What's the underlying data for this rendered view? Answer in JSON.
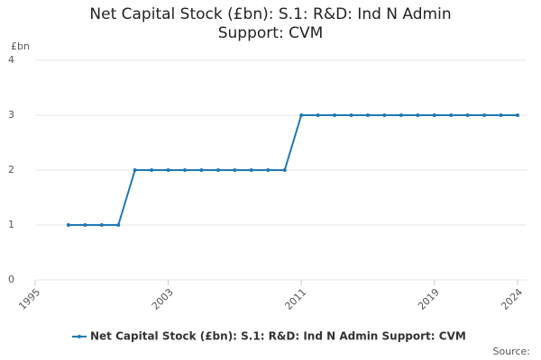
{
  "chart_data": {
    "type": "line",
    "title": "Net Capital Stock (£bn): S.1: R&D: Ind N Admin Support: CVM",
    "y_label": "£bn",
    "source": "Source:",
    "x": [
      1997,
      1998,
      1999,
      2000,
      2001,
      2002,
      2003,
      2004,
      2005,
      2006,
      2007,
      2008,
      2009,
      2010,
      2011,
      2012,
      2013,
      2014,
      2015,
      2016,
      2017,
      2018,
      2019,
      2020,
      2021,
      2022,
      2023,
      2024
    ],
    "series": [
      {
        "name": "Net Capital Stock (£bn): S.1: R&D: Ind N Admin Support: CVM",
        "color": "#1f78b4",
        "values": [
          1,
          1,
          1,
          1,
          2,
          2,
          2,
          2,
          2,
          2,
          2,
          2,
          2,
          2,
          3,
          3,
          3,
          3,
          3,
          3,
          3,
          3,
          3,
          3,
          3,
          3,
          3,
          3
        ]
      }
    ],
    "xlim": [
      1995,
      2024
    ],
    "xticks": [
      1995,
      2003,
      2011,
      2019,
      2024
    ],
    "ylim": [
      0,
      4
    ],
    "yticks": [
      0,
      1,
      2,
      3,
      4
    ],
    "grid": true
  }
}
